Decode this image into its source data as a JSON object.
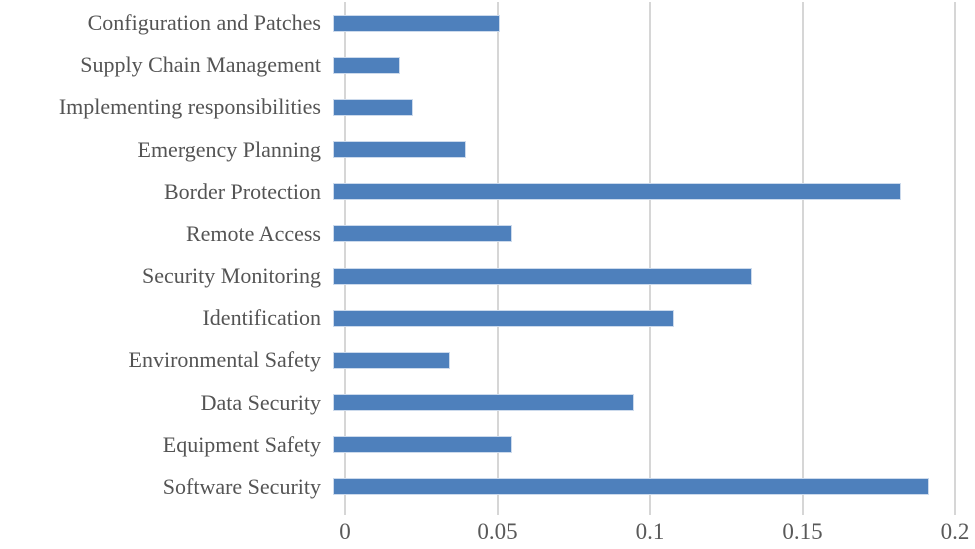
{
  "chart_data": {
    "type": "bar",
    "orientation": "horizontal",
    "title": "",
    "xlabel": "",
    "ylabel": "",
    "categories": [
      "Configuration and Patches",
      "Supply Chain Management",
      "Implementing responsibilities",
      "Emergency Planning",
      "Border Protection",
      "Remote Access",
      "Security Monitoring",
      "Identification",
      "Environmental Safety",
      "Data Security",
      "Equipment Safety",
      "Software Security"
    ],
    "values": [
      0.053,
      0.021,
      0.025,
      0.042,
      0.182,
      0.057,
      0.134,
      0.109,
      0.037,
      0.096,
      0.057,
      0.191
    ],
    "xlim": [
      0,
      0.2
    ],
    "x_ticks": [
      0,
      0.05,
      0.1,
      0.15,
      0.2
    ],
    "x_tick_labels": [
      "0",
      "0.05",
      "0.1",
      "0.15",
      "0.2"
    ],
    "grid": "vertical-gridlines-on",
    "legend": "none",
    "colors": {
      "bar_fill": "#4e80bc",
      "bar_border": "#ccdaec",
      "gridline": "#d6d6d6",
      "axis_line": "#d6d6d6",
      "label_text": "#545454",
      "tick_text": "#595959",
      "background": "#ffffff"
    }
  }
}
